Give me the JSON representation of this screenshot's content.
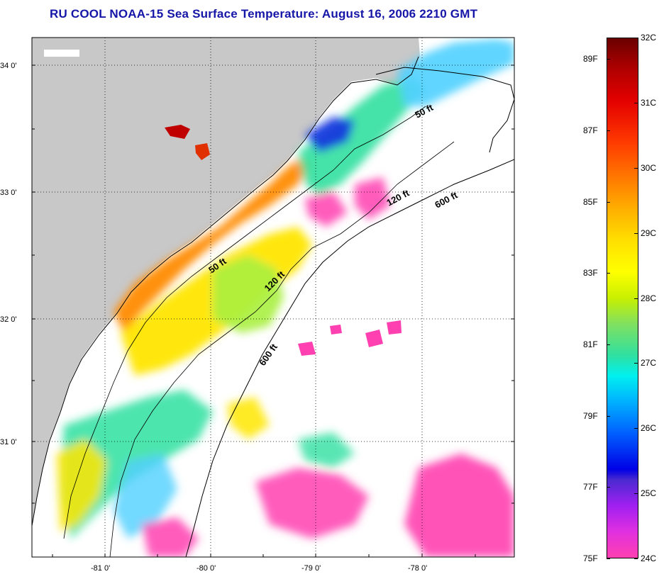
{
  "title": "RU COOL  NOAA-15  Sea Surface Temperature:  August 16, 2006 2210 GMT",
  "map": {
    "lat_labels": [
      "34 0'",
      "33 0'",
      "32 0'",
      "31 0'"
    ],
    "lon_labels": [
      "-81 0'",
      "-80 0'",
      "-79 0'",
      "-78 0'"
    ],
    "contour_labels": [
      {
        "text": "50 ft",
        "name": "contour-50ft-north"
      },
      {
        "text": "120 ft",
        "name": "contour-120ft-north"
      },
      {
        "text": "600 ft",
        "name": "contour-600ft-north"
      },
      {
        "text": "50 ft",
        "name": "contour-50ft-south"
      },
      {
        "text": "120 ft",
        "name": "contour-120ft-south"
      },
      {
        "text": "600 ft",
        "name": "contour-600ft-south"
      }
    ],
    "colors": {
      "land": "#c8c8c8",
      "clouds": "#ffffff",
      "warm": "#ff8a00",
      "mid": "#ffe600",
      "cool": "#30e0a0",
      "cold": "#0040ff",
      "coldest": "#ff40b0"
    }
  },
  "colorbar": {
    "celsius_labels": [
      "32C",
      "31C",
      "30C",
      "29C",
      "28C",
      "27C",
      "26C",
      "25C",
      "24C"
    ],
    "fahrenheit_labels": [
      "89F",
      "87F",
      "85F",
      "83F",
      "81F",
      "79F",
      "77F",
      "75F"
    ],
    "range_c": [
      24,
      32
    ],
    "range_f": [
      75,
      89.6
    ]
  }
}
